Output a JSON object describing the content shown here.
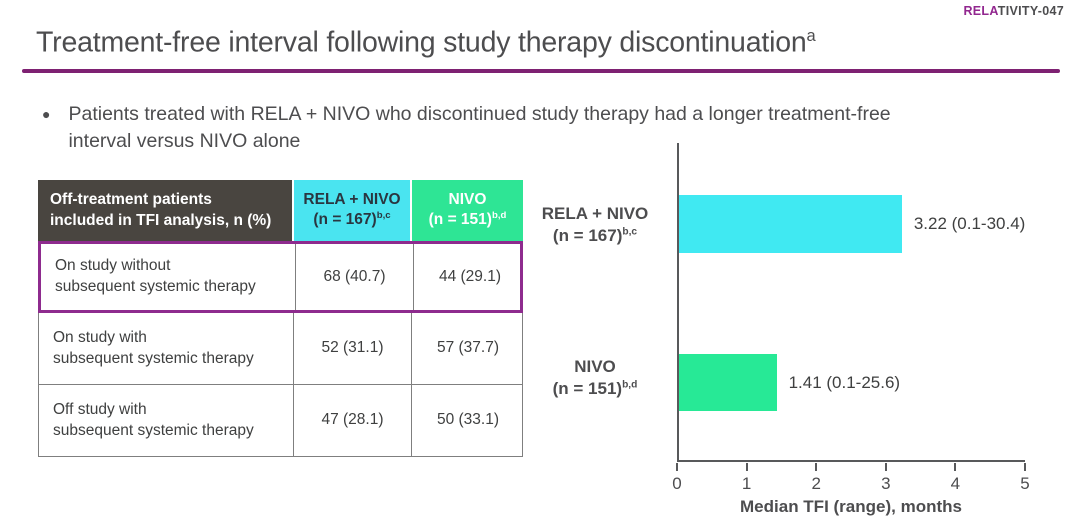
{
  "slide": {
    "study_tag": {
      "highlight": "RELA",
      "rest": "TIVITY-047"
    },
    "title": {
      "text": "Treatment-free interval following study therapy discontinuation",
      "sup": "a"
    },
    "bullet": "Patients treated with RELA + NIVO who discontinued study therapy had a longer treatment-free interval versus NIVO alone"
  },
  "colors": {
    "accent_purple": "#92278F",
    "rule_purple": "#7E2172",
    "highlight_border": "#8E2B8E",
    "header_dark_bg": "#494540",
    "cyan": "#40E9F2",
    "green": "#27E996",
    "text_dark": "#4D4D4F",
    "axis": "#58595B"
  },
  "table": {
    "header": {
      "col1_line1": "Off-treatment patients",
      "col1_line2": "included in TFI analysis, n (%)",
      "col2_line1": "RELA + NIVO",
      "col2_line2": "(n = 167)",
      "col2_sup": "b,c",
      "col3_line1": "NIVO",
      "col3_line2": "(n = 151)",
      "col3_sup": "b,d"
    },
    "rows": [
      {
        "label_line1": "On study without",
        "label_line2": "subsequent systemic therapy",
        "rela_nivo": "68 (40.7)",
        "nivo": "44 (29.1)",
        "highlighted": true
      },
      {
        "label_line1": "On study with",
        "label_line2": "subsequent systemic therapy",
        "rela_nivo": "52 (31.1)",
        "nivo": "57 (37.7)",
        "highlighted": false
      },
      {
        "label_line1": "Off study with",
        "label_line2": "subsequent systemic therapy",
        "rela_nivo": "47 (28.1)",
        "nivo": "50 (33.1)",
        "highlighted": false
      }
    ]
  },
  "chart_data": {
    "type": "bar",
    "orientation": "horizontal",
    "xlabel": "Median TFI (range), months",
    "xlim": [
      0,
      5
    ],
    "xticks": [
      "0",
      "1",
      "2",
      "3",
      "4",
      "5"
    ],
    "grid": false,
    "bars": [
      {
        "category_line1": "RELA + NIVO",
        "category_line2": "(n = 167)",
        "category_sup": "b,c",
        "value": 3.22,
        "label": "3.22 (0.1-30.4)",
        "color": "#40E9F2"
      },
      {
        "category_line1": "NIVO",
        "category_line2": "(n = 151)",
        "category_sup": "b,d",
        "value": 1.41,
        "label": "1.41 (0.1-25.6)",
        "color": "#27E996"
      }
    ]
  }
}
